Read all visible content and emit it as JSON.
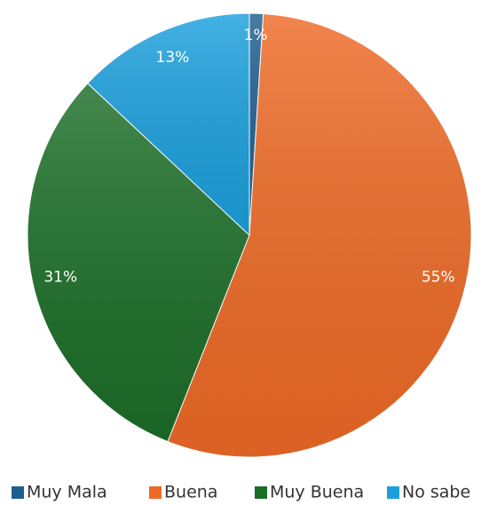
{
  "chart_data": {
    "type": "pie",
    "categories": [
      "Muy Mala",
      "Buena",
      "Muy Buena",
      "No sabe"
    ],
    "values": [
      1,
      55,
      31,
      13
    ],
    "value_labels": [
      "1%",
      "55%",
      "31%",
      "13%"
    ],
    "colors": [
      "#1f5f8f",
      "#ee6a26",
      "#1c6e28",
      "#1ba0dd"
    ],
    "legend": "bottom"
  }
}
